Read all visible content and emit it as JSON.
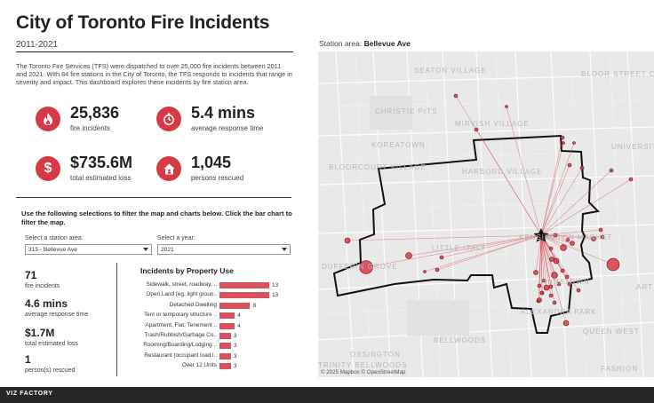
{
  "header": {
    "title": "City of Toronto Fire Incidents",
    "subtitle": "2011-2021",
    "intro": "The Toronto Fire Services (TFS) were dispatched to over 25,000 fire incidents between 2011 and 2021. With 84 fire stations in the City of Toronto, the TFS responds to incidents that range in severity and impact. This dashboard explores these incidents by fire station area."
  },
  "kpis": [
    {
      "value": "25,836",
      "label": "fire incidents",
      "icon": "fire-icon"
    },
    {
      "value": "5.4 mins",
      "label": "average response time",
      "icon": "stopwatch-icon"
    },
    {
      "value": "$735.6M",
      "label": "total estimated loss",
      "icon": "dollar-icon"
    },
    {
      "value": "1,045",
      "label": "persons rescued",
      "icon": "house-icon"
    }
  ],
  "filters": {
    "instructions": "Use the following selections to filter the map and charts below. Click the bar chart to filter the map.",
    "station_label": "Select a station area:",
    "station_value": "315 - Bellevue Ave",
    "year_label": "Select a year:",
    "year_value": "2021"
  },
  "station_stats": [
    {
      "value": "71",
      "label": "fire incidents"
    },
    {
      "value": "4.6 mins",
      "label": "average response time"
    },
    {
      "value": "$1.7M",
      "label": "total estimated loss"
    },
    {
      "value": "1",
      "label": "person(s) rescued"
    }
  ],
  "chart_data": {
    "type": "bar",
    "title": "Incidents by Property Use",
    "orientation": "horizontal",
    "categories": [
      "Sidewalk, street, roadway, ..",
      "Open Land (eg. light groun..",
      "Detached Dwelling",
      "Tent or temporary structure ..",
      "Apartment, Flat, Tenement ..",
      "Trash/Rubbish/Garbage Co..",
      "Rooming/Boarding/Lodging ..",
      "Restaurant (occupant load l..",
      "Over 12 Units"
    ],
    "values": [
      13,
      13,
      8,
      4,
      4,
      3,
      3,
      3,
      3
    ],
    "color": "#d8525e"
  },
  "map": {
    "caption_prefix": "Station area:",
    "station_name": "Bellevue Ave",
    "attribution": "© 2025 Mapbox  © OpenStreetMap",
    "neighbourhoods": [
      "SEATON VILLAGE",
      "CHRISTIE PITS",
      "MIRVISH VILLAGE",
      "KOREATOWN",
      "HARBORD VILLAGE",
      "BLOORCOURT VILLAGE",
      "BLOOR STREET CULTURE CORRIDOR",
      "UNIVERSITY",
      "LITTLE ITALY",
      "KENSINGTON MARKET",
      "DUFFERIN GROVE",
      "CHINATOWN",
      "ALEXANDRA PARK",
      "QUEEN WEST",
      "BELLWOODS",
      "OSSINGTON",
      "TRINITY BELLWOODS",
      "FASHION",
      "ART GALLERY"
    ],
    "accent": "#d63a45"
  },
  "footer": {
    "brand": "VIZ FACTORY"
  }
}
